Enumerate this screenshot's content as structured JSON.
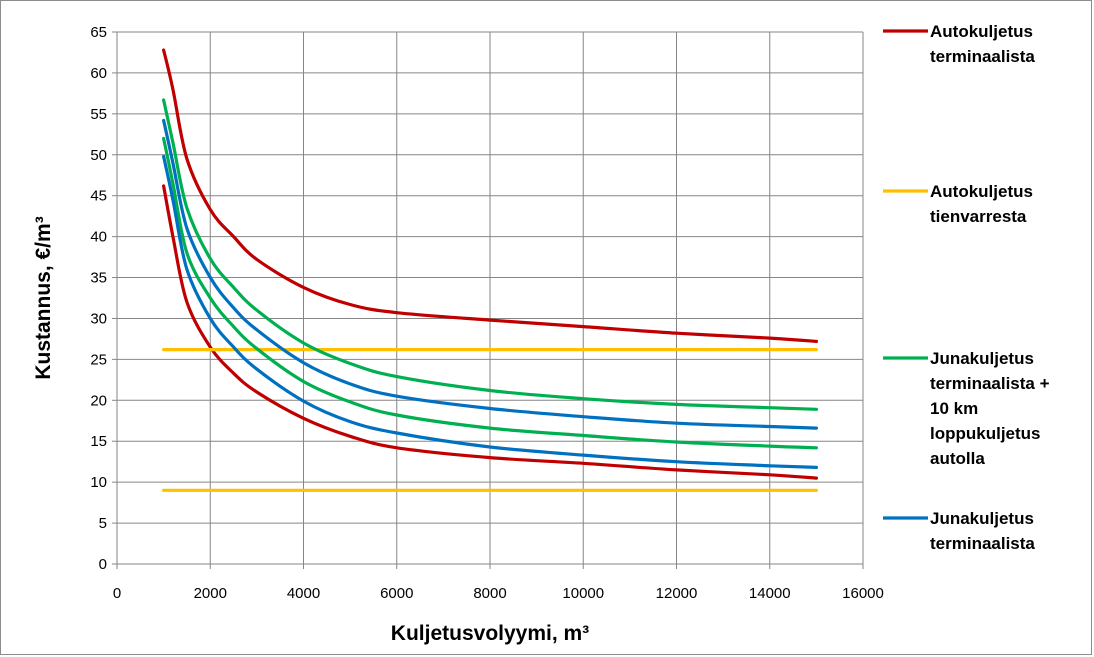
{
  "chart_data": {
    "type": "line",
    "title": "",
    "xlabel": "Kuljetusvolyymi, m³",
    "ylabel": "Kustannus, €/m³",
    "xlim": [
      0,
      16000
    ],
    "ylim": [
      0,
      65
    ],
    "x_ticks": [
      "0",
      "2000",
      "4000",
      "6000",
      "8000",
      "10000",
      "12000",
      "14000",
      "16000"
    ],
    "y_ticks": [
      "0",
      "5",
      "10",
      "15",
      "20",
      "25",
      "30",
      "35",
      "40",
      "45",
      "50",
      "55",
      "60",
      "65"
    ],
    "grid": true,
    "legend_position": "right",
    "legend": [
      {
        "text": [
          "Autokuljetus",
          "terminaalista"
        ],
        "color": "#c00000"
      },
      {
        "text": [
          "Autokuljetus",
          "tienvarresta"
        ],
        "color": "#ffc000"
      },
      {
        "text": [
          "Junakuljetus",
          "terminaalista +",
          "10 km",
          "loppukuljetus",
          "autolla"
        ],
        "color": "#00b050"
      },
      {
        "text": [
          "Junakuljetus",
          "terminaalista"
        ],
        "color": "#0070c0"
      }
    ],
    "series": [
      {
        "group": "Autokuljetus terminaalista",
        "color": "#c00000",
        "x": [
          1000,
          1200,
          1500,
          2000,
          2500,
          3000,
          4000,
          5000,
          6000,
          8000,
          10000,
          12000,
          14000,
          15000
        ],
        "y": [
          62.8,
          58.0,
          49.5,
          43.3,
          40.0,
          37.2,
          33.8,
          31.7,
          30.7,
          29.8,
          29.0,
          28.2,
          27.6,
          27.2
        ]
      },
      {
        "group": "Autokuljetus terminaalista",
        "color": "#c00000",
        "x": [
          1000,
          1200,
          1500,
          2000,
          2500,
          3000,
          4000,
          5000,
          6000,
          8000,
          10000,
          12000,
          14000,
          15000
        ],
        "y": [
          46.2,
          40.0,
          32.0,
          26.5,
          23.3,
          21.0,
          17.8,
          15.6,
          14.2,
          13.0,
          12.3,
          11.5,
          10.9,
          10.5
        ]
      },
      {
        "group": "Autokuljetus tienvarresta",
        "color": "#ffc000",
        "x": [
          1000,
          15000
        ],
        "y": [
          26.2,
          26.2
        ]
      },
      {
        "group": "Autokuljetus tienvarresta",
        "color": "#ffc000",
        "x": [
          1000,
          15000
        ],
        "y": [
          9.0,
          9.0
        ]
      },
      {
        "group": "Junakuljetus terminaalista + 10 km loppukuljetus autolla",
        "color": "#00b050",
        "x": [
          1000,
          1200,
          1500,
          2000,
          2500,
          3000,
          4000,
          5000,
          6000,
          8000,
          10000,
          12000,
          14000,
          15000
        ],
        "y": [
          56.7,
          51.5,
          43.5,
          37.3,
          33.8,
          31.0,
          27.0,
          24.5,
          22.9,
          21.2,
          20.2,
          19.5,
          19.1,
          18.9
        ]
      },
      {
        "group": "Junakuljetus terminaalista + 10 km loppukuljetus autolla",
        "color": "#00b050",
        "x": [
          1000,
          1200,
          1500,
          2000,
          2500,
          3000,
          4000,
          5000,
          6000,
          8000,
          10000,
          12000,
          14000,
          15000
        ],
        "y": [
          52.0,
          46.5,
          38.0,
          32.5,
          29.0,
          26.3,
          22.3,
          19.8,
          18.2,
          16.6,
          15.7,
          14.9,
          14.4,
          14.2
        ]
      },
      {
        "group": "Junakuljetus terminaalista",
        "color": "#0070c0",
        "x": [
          1000,
          1200,
          1500,
          2000,
          2500,
          3000,
          4000,
          5000,
          6000,
          8000,
          10000,
          12000,
          14000,
          15000
        ],
        "y": [
          54.2,
          49.0,
          41.0,
          35.0,
          31.3,
          28.6,
          24.6,
          22.0,
          20.5,
          19.0,
          18.0,
          17.2,
          16.8,
          16.6
        ]
      },
      {
        "group": "Junakuljetus terminaalista",
        "color": "#0070c0",
        "x": [
          1000,
          1200,
          1500,
          2000,
          2500,
          3000,
          4000,
          5000,
          6000,
          8000,
          10000,
          12000,
          14000,
          15000
        ],
        "y": [
          49.8,
          44.5,
          36.0,
          30.0,
          26.5,
          23.8,
          19.9,
          17.4,
          16.0,
          14.3,
          13.3,
          12.5,
          12.0,
          11.8
        ]
      }
    ]
  }
}
